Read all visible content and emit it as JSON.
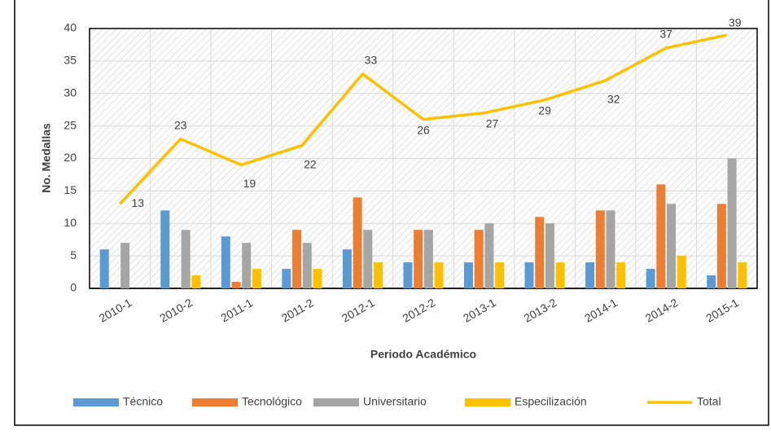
{
  "chart_data": {
    "type": "bar",
    "categories": [
      "2010-1",
      "2010-2",
      "2011-1",
      "2011-2",
      "2012-1",
      "2012-2",
      "2013-1",
      "2013-2",
      "2014-1",
      "2014-2",
      "2015-1"
    ],
    "series": [
      {
        "name": "Técnico",
        "color": "#5b9bd5",
        "values": [
          6,
          12,
          8,
          3,
          6,
          4,
          4,
          4,
          4,
          3,
          2
        ]
      },
      {
        "name": "Tecnológico",
        "color": "#ed7d31",
        "values": [
          0,
          0,
          1,
          9,
          14,
          9,
          9,
          11,
          12,
          16,
          13
        ]
      },
      {
        "name": "Universitario",
        "color": "#a5a5a5",
        "values": [
          7,
          9,
          7,
          7,
          9,
          9,
          10,
          10,
          12,
          13,
          20
        ]
      },
      {
        "name": "Especilización",
        "color": "#ffc000",
        "values": [
          0,
          2,
          3,
          3,
          4,
          4,
          4,
          4,
          4,
          5,
          4
        ]
      },
      {
        "name": "Total",
        "color": "#ffc000",
        "type": "line",
        "values": [
          13,
          23,
          19,
          22,
          33,
          26,
          27,
          29,
          32,
          37,
          39
        ]
      }
    ],
    "ylim": [
      0,
      40
    ],
    "yticks": [
      0,
      5,
      10,
      15,
      20,
      25,
      30,
      35,
      40
    ],
    "grid": true,
    "ylabel": "No. Medallas",
    "xlabel": "Periodo Académico",
    "legend": "bottom"
  }
}
